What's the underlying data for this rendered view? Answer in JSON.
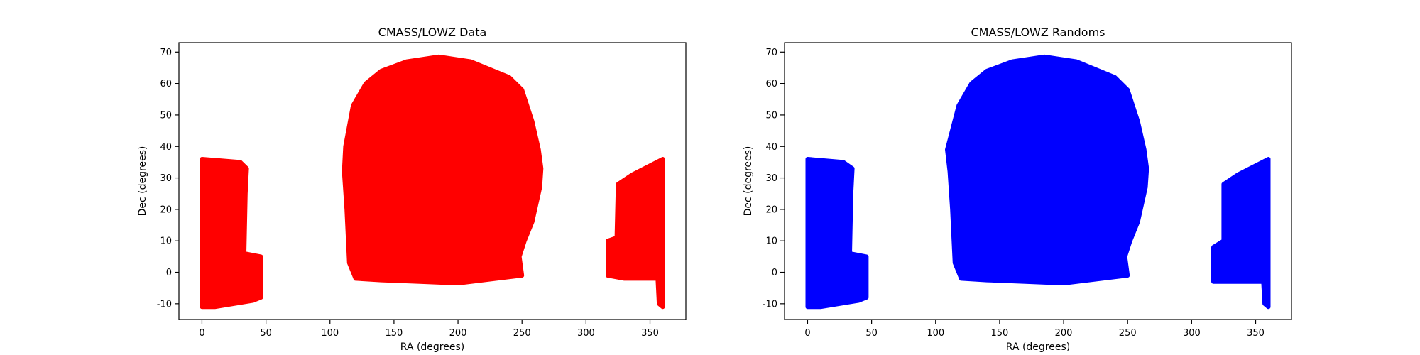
{
  "chart_data": [
    {
      "type": "scatter",
      "title": "CMASS/LOWZ Data",
      "xlabel": "RA (degrees)",
      "ylabel": "Dec (degrees)",
      "xlim": [
        -18,
        378
      ],
      "ylim": [
        -15,
        73
      ],
      "xticks": [
        0,
        50,
        100,
        150,
        200,
        250,
        300,
        350
      ],
      "yticks": [
        -10,
        0,
        10,
        20,
        30,
        40,
        50,
        60,
        70
      ],
      "grid": false,
      "color": "#ff0000",
      "regions": [
        {
          "name": "",
          "polygon": [
            [
              0,
              -11
            ],
            [
              0,
              36
            ],
            [
              30,
              35
            ],
            [
              35,
              33
            ],
            [
              34,
              25
            ],
            [
              33,
              6
            ],
            [
              46,
              5
            ],
            [
              46,
              -8
            ],
            [
              40,
              -9
            ],
            [
              10,
              -11
            ]
          ]
        },
        {
          "name": "",
          "polygon": [
            [
              112,
              40
            ],
            [
              118,
              53
            ],
            [
              128,
              60
            ],
            [
              140,
              64
            ],
            [
              160,
              67
            ],
            [
              185,
              68.5
            ],
            [
              210,
              67
            ],
            [
              228,
              64
            ],
            [
              240,
              62
            ],
            [
              250,
              58
            ],
            [
              258,
              48
            ],
            [
              263,
              39
            ],
            [
              265,
              33
            ],
            [
              264,
              27
            ],
            [
              258,
              16
            ],
            [
              252,
              10
            ],
            [
              248,
              5
            ],
            [
              250,
              -1
            ],
            [
              230,
              -2
            ],
            [
              200,
              -3.5
            ],
            [
              170,
              -3
            ],
            [
              140,
              -2.5
            ],
            [
              120,
              -2
            ],
            [
              115,
              3
            ],
            [
              113,
              20
            ],
            [
              111,
              32
            ]
          ]
        },
        {
          "name": "",
          "polygon": [
            [
              317,
              0
            ],
            [
              317,
              10
            ],
            [
              324,
              11
            ],
            [
              325,
              28
            ],
            [
              336,
              31
            ],
            [
              360,
              36
            ],
            [
              360,
              -11
            ],
            [
              357,
              -10
            ],
            [
              356,
              -2
            ],
            [
              330,
              -2
            ],
            [
              317,
              -1
            ]
          ]
        }
      ]
    },
    {
      "type": "scatter",
      "title": "CMASS/LOWZ Randoms",
      "xlabel": "RA (degrees)",
      "ylabel": "Dec (degrees)",
      "xlim": [
        -18,
        378
      ],
      "ylim": [
        -15,
        73
      ],
      "xticks": [
        0,
        50,
        100,
        150,
        200,
        250,
        300,
        350
      ],
      "yticks": [
        -10,
        0,
        10,
        20,
        30,
        40,
        50,
        60,
        70
      ],
      "grid": false,
      "color": "#0000ff",
      "regions": [
        {
          "name": "",
          "polygon": [
            [
              0,
              -11
            ],
            [
              0,
              36
            ],
            [
              28,
              35
            ],
            [
              35,
              33
            ],
            [
              34,
              25
            ],
            [
              33,
              6
            ],
            [
              46,
              5
            ],
            [
              46,
              -8
            ],
            [
              40,
              -9
            ],
            [
              10,
              -11
            ]
          ]
        },
        {
          "name": "",
          "polygon": [
            [
              109,
              39
            ],
            [
              118,
              53
            ],
            [
              128,
              60
            ],
            [
              140,
              64
            ],
            [
              160,
              67
            ],
            [
              185,
              68.5
            ],
            [
              210,
              67
            ],
            [
              228,
              64
            ],
            [
              240,
              62
            ],
            [
              250,
              58
            ],
            [
              258,
              48
            ],
            [
              263,
              39
            ],
            [
              265,
              33
            ],
            [
              264,
              27
            ],
            [
              258,
              16
            ],
            [
              252,
              10
            ],
            [
              248,
              5
            ],
            [
              250,
              -1
            ],
            [
              230,
              -2
            ],
            [
              200,
              -3.5
            ],
            [
              170,
              -3
            ],
            [
              140,
              -2.5
            ],
            [
              120,
              -2
            ],
            [
              115,
              3
            ],
            [
              113,
              20
            ],
            [
              111,
              32
            ]
          ]
        },
        {
          "name": "",
          "polygon": [
            [
              317,
              -3
            ],
            [
              317,
              8
            ],
            [
              325,
              10
            ],
            [
              325,
              28
            ],
            [
              336,
              31
            ],
            [
              360,
              36
            ],
            [
              360,
              -11
            ],
            [
              357,
              -10
            ],
            [
              356,
              -3
            ]
          ]
        }
      ]
    }
  ]
}
